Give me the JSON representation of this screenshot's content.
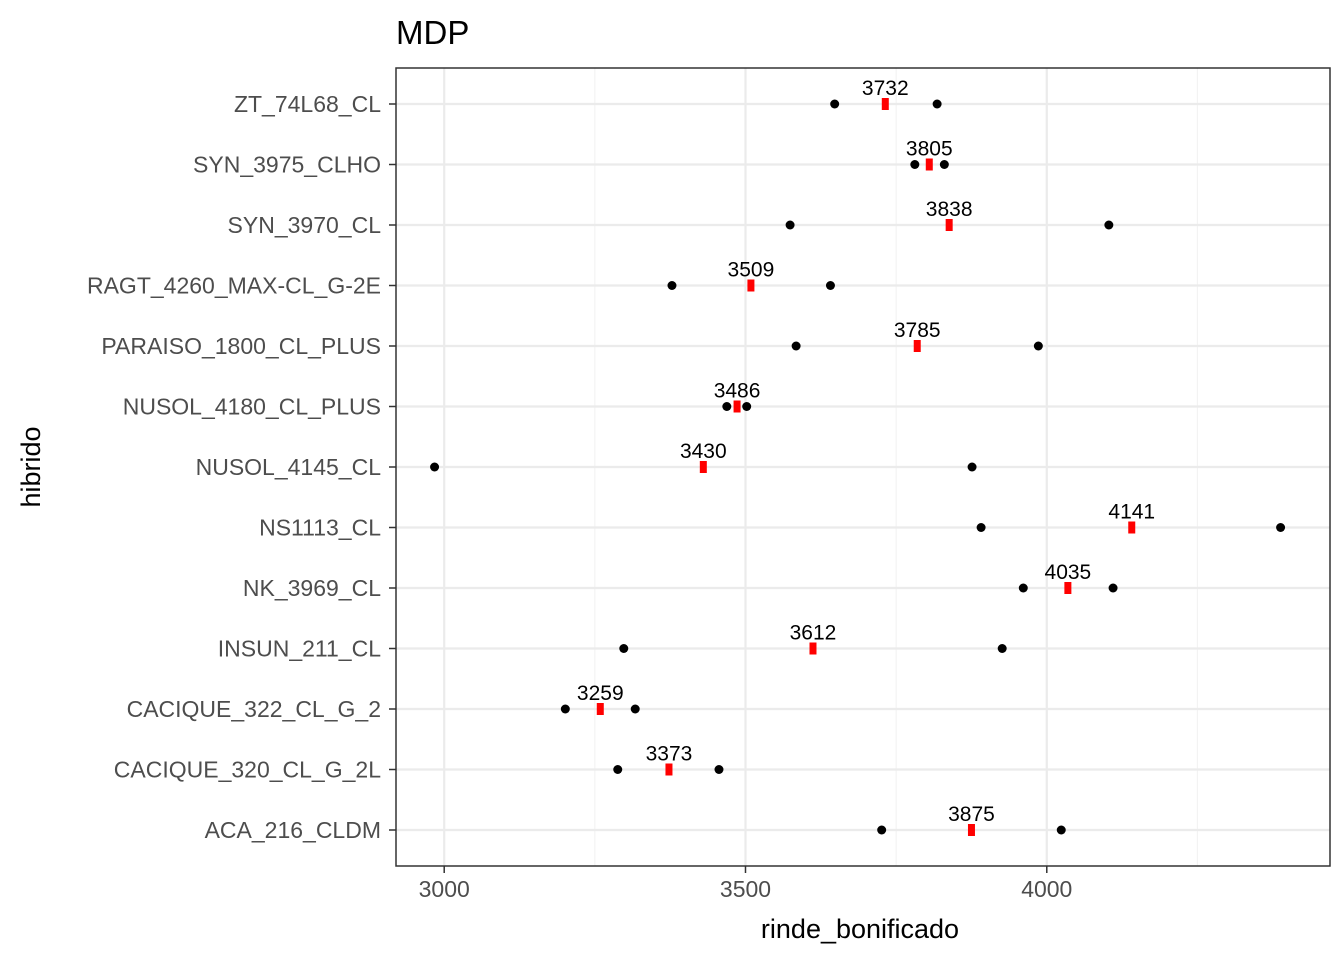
{
  "chart_data": {
    "type": "scatter",
    "title": "MDP",
    "xlabel": "rinde_bonificado",
    "ylabel": "hibrido",
    "xlim": [
      2920,
      4470
    ],
    "x_ticks": [
      3000,
      3500,
      4000
    ],
    "grid": true,
    "legend": "none",
    "colors": {
      "points": "#000000",
      "mean": "#ff0000",
      "grid": "#ebebeb",
      "panel_border": "#333333"
    },
    "categories": [
      "ZT_74L68_CL",
      "SYN_3975_CLHO",
      "SYN_3970_CL",
      "RAGT_4260_MAX-CL_G-2E",
      "PARAISO_1800_CL_PLUS",
      "NUSOL_4180_CL_PLUS",
      "NUSOL_4145_CL",
      "NS1113_CL",
      "NK_3969_CL",
      "INSUN_211_CL",
      "CACIQUE_322_CL_G_2",
      "CACIQUE_320_CL_G_2L",
      "ACA_216_CLDM"
    ],
    "observations": [
      [
        3648,
        3818
      ],
      [
        3781,
        3830
      ],
      [
        3574,
        4103
      ],
      [
        3378,
        3641
      ],
      [
        3584,
        3986
      ],
      [
        3469,
        3502
      ],
      [
        2984,
        3876
      ],
      [
        3891,
        4388
      ],
      [
        3961,
        4110
      ],
      [
        3298,
        3926
      ],
      [
        3201,
        3317
      ],
      [
        3288,
        3456
      ],
      [
        3726,
        4024
      ]
    ],
    "means": [
      3732,
      3805,
      3838,
      3509,
      3785,
      3486,
      3430,
      4141,
      4035,
      3612,
      3259,
      3373,
      3875
    ],
    "mean_labels": [
      "3732",
      "3805",
      "3838",
      "3509",
      "3785",
      "3486",
      "3430",
      "4141",
      "4035",
      "3612",
      "3259",
      "3373",
      "3875"
    ]
  }
}
